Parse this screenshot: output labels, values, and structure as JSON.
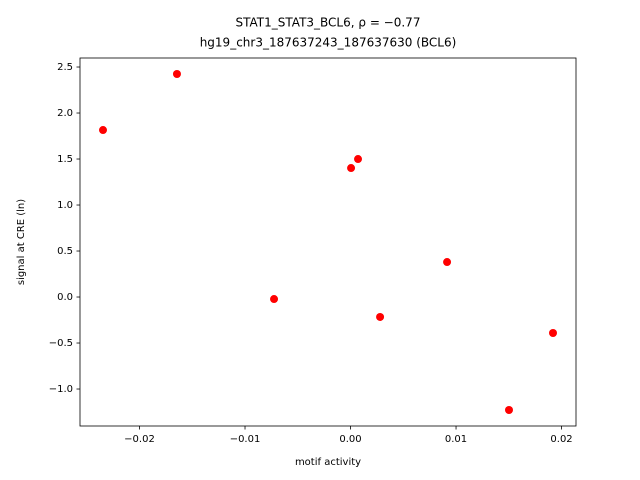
{
  "chart_data": {
    "type": "scatter",
    "title": "STAT1_STAT3_BCL6, ρ = −0.77",
    "subtitle": "hg19_chr3_187637243_187637630 (BCL6)",
    "x_label": "motif activity",
    "y_label": "signal at CRE (ln)",
    "color": "#ff0000",
    "x": [
      -0.02346,
      -0.01645,
      -0.00725,
      5e-05,
      0.00071,
      0.0028,
      0.00915,
      0.01502,
      0.01919
    ],
    "values": [
      1.815,
      2.424,
      -0.022,
      1.402,
      1.5,
      -0.217,
      0.38,
      -1.228,
      -0.391
    ],
    "xlim": [
      -0.02564,
      0.02137
    ],
    "ylim": [
      -1.402,
      2.598
    ],
    "xticks": [
      {
        "value": -0.02,
        "label": "−0.02"
      },
      {
        "value": -0.01,
        "label": "−0.01"
      },
      {
        "value": 0,
        "label": "0.00"
      },
      0.01,
      0.02
    ],
    "yticks": [
      {
        "value": -1,
        "label": "−1.0"
      },
      {
        "value": -0.5,
        "label": "−0.5"
      },
      {
        "value": 0,
        "label": "0.0"
      },
      0.5,
      {
        "value": 1,
        "label": "1.0"
      },
      1.5,
      {
        "value": 2,
        "label": "2.0"
      },
      2.5
    ],
    "grid": false
  }
}
